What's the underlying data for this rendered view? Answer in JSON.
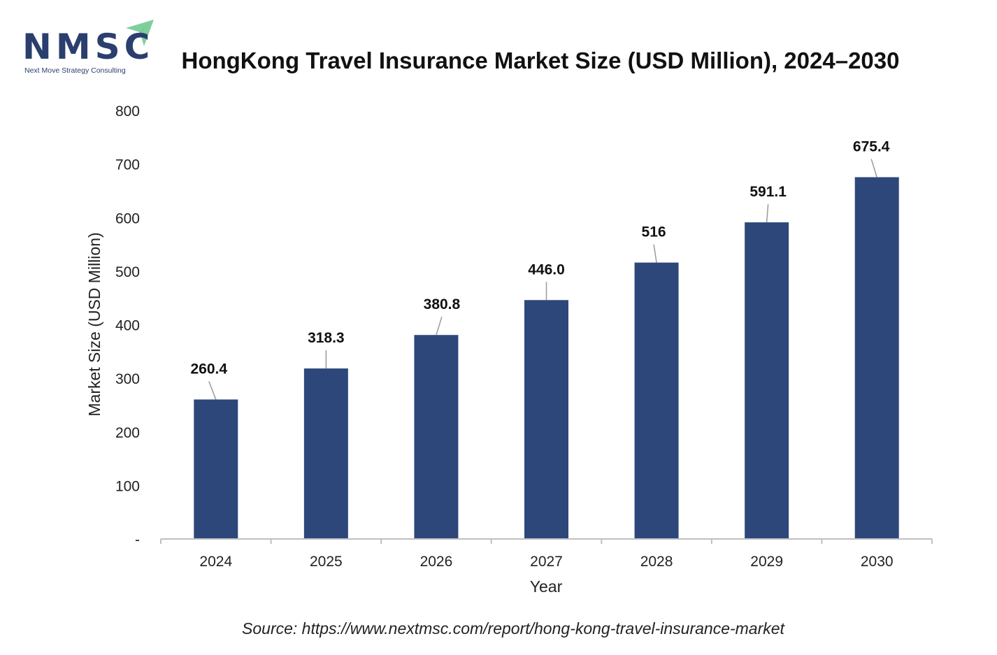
{
  "logo": {
    "text": "NMSC",
    "tagline": "Next Move Strategy Consulting",
    "colors": {
      "text": "#2b3f6e",
      "arrow": "#7fcf9d"
    }
  },
  "title": "HongKong Travel Insurance Market Size (USD Million), 2024–2030",
  "source": "Source: https://www.nextmsc.com/report/hong-kong-travel-insurance-market",
  "chart_data": {
    "type": "bar",
    "categories": [
      "2024",
      "2025",
      "2026",
      "2027",
      "2028",
      "2029",
      "2030"
    ],
    "values": [
      260.4,
      318.3,
      380.8,
      446.0,
      516,
      591.1,
      675.4
    ],
    "data_labels": [
      "260.4",
      "318.3",
      "380.8",
      "446.0",
      "516",
      "591.1",
      "675.4"
    ],
    "xlabel": "Year",
    "ylabel": "Market Size (USD Million)",
    "ylim": [
      0,
      800
    ],
    "yticks": [
      0,
      100,
      200,
      300,
      400,
      500,
      600,
      700,
      800
    ],
    "ytick_labels": [
      "-",
      "100",
      "200",
      "300",
      "400",
      "500",
      "600",
      "700",
      "800"
    ],
    "grid": false,
    "legend": "none",
    "bar_color": "#2d477b"
  }
}
